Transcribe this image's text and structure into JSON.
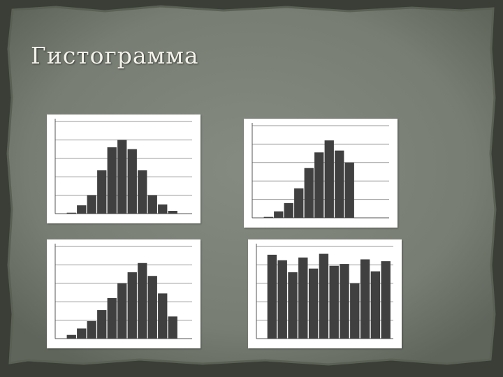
{
  "slide": {
    "title": "Гистограмма",
    "colors": {
      "bar": "#404040",
      "grid": "#9a9a9a",
      "panel": "#ffffff",
      "slide_bg": "#7a8176"
    }
  },
  "chart_data": [
    {
      "type": "bar",
      "shape": "symmetric",
      "gridlines": 5,
      "ylim": [
        0,
        100
      ],
      "values": [
        1,
        9,
        20,
        47,
        72,
        80,
        70,
        47,
        20,
        10,
        3
      ]
    },
    {
      "type": "bar",
      "shape": "left-skewed",
      "gridlines": 5,
      "ylim": [
        0,
        100
      ],
      "values": [
        1,
        7,
        16,
        32,
        54,
        71,
        84,
        73,
        60
      ]
    },
    {
      "type": "bar",
      "shape": "left-skewed",
      "gridlines": 5,
      "ylim": [
        0,
        100
      ],
      "values": [
        4,
        11,
        19,
        31,
        44,
        60,
        72,
        82,
        68,
        49,
        24
      ]
    },
    {
      "type": "bar",
      "shape": "uniform",
      "gridlines": 5,
      "ylim": [
        0,
        100
      ],
      "values": [
        91,
        85,
        72,
        88,
        76,
        92,
        79,
        81,
        60,
        86,
        73,
        84
      ]
    }
  ]
}
